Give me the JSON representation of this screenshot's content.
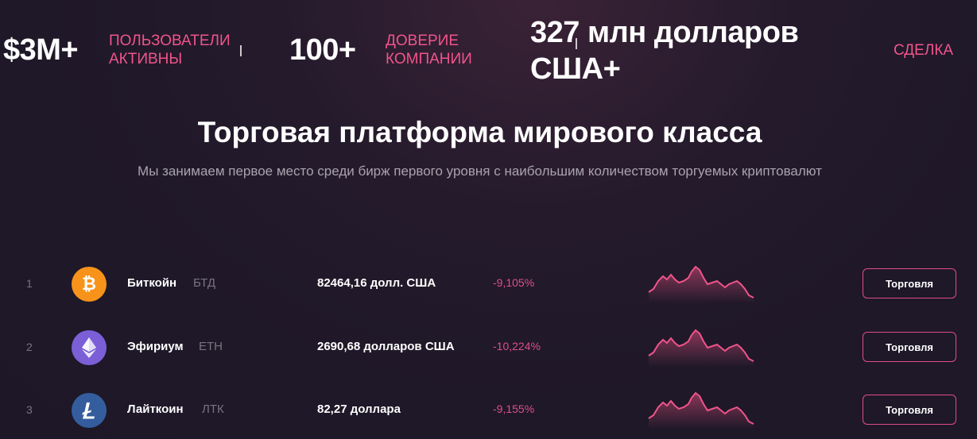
{
  "stats": {
    "users_value": "$3M+",
    "users_label_line1": "ПОЛЬЗОВАТЕЛИ",
    "users_label_line2": "АКТИВНЫ",
    "trust_value": "100+",
    "trust_label_line1": "ДОВЕРИЕ",
    "trust_label_line2": "КОМПАНИИ",
    "volume_value_line1": "327 млн долларов",
    "volume_value_line2": "США+",
    "deal_label": "СДЕЛКА"
  },
  "section": {
    "title": "Торговая платформа мирового класса",
    "subtitle": "Мы занимаем первое место среди бирж первого уровня с наибольшим количеством торгуемых криптовалют"
  },
  "coins": [
    {
      "rank": "1",
      "name": "Биткойн",
      "ticker": "БТД",
      "price": "82464,16 долл. США",
      "change": "-9,105%",
      "button": "Торговля",
      "icon": "bitcoin-icon",
      "color": "#f7931a"
    },
    {
      "rank": "2",
      "name": "Эфириум",
      "ticker": "ETH",
      "price": "2690,68 долларов США",
      "change": "-10,224%",
      "button": "Торговля",
      "icon": "ethereum-icon",
      "color": "#7b5fd6"
    },
    {
      "rank": "3",
      "name": "Лайткоин",
      "ticker": "ЛТК",
      "price": "82,27 доллара",
      "change": "-9,155%",
      "button": "Торговля",
      "icon": "litecoin-icon",
      "color": "#345d9d"
    }
  ]
}
